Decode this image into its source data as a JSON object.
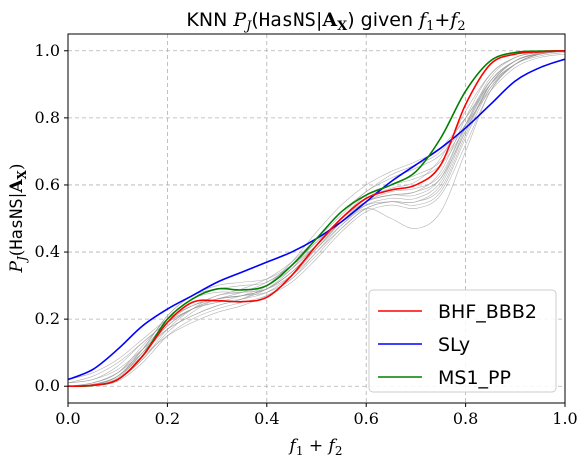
{
  "chart_data": {
    "type": "line",
    "title": "KNN P_J(HasNS|A_X) given f_1+f_2",
    "xlabel": "f_1 + f_2",
    "ylabel": "P_J(HasNS|A_X)",
    "xlim": [
      0.0,
      1.0
    ],
    "ylim": [
      -0.05,
      1.05
    ],
    "x_ticks": [
      "0.0",
      "0.2",
      "0.4",
      "0.6",
      "0.8",
      "1.0"
    ],
    "y_ticks": [
      "0.0",
      "0.2",
      "0.4",
      "0.6",
      "0.8",
      "1.0"
    ],
    "grid": true,
    "legend_position": "bottom-right",
    "x": [
      0.0,
      0.05,
      0.1,
      0.15,
      0.2,
      0.25,
      0.3,
      0.35,
      0.4,
      0.45,
      0.5,
      0.55,
      0.6,
      0.65,
      0.7,
      0.75,
      0.8,
      0.85,
      0.9,
      0.95,
      1.0
    ],
    "series": [
      {
        "name": "BHF_BBB2",
        "color": "#ff0000",
        "values": [
          0.0,
          0.003,
          0.02,
          0.09,
          0.19,
          0.25,
          0.255,
          0.252,
          0.265,
          0.33,
          0.42,
          0.5,
          0.56,
          0.585,
          0.6,
          0.66,
          0.84,
          0.96,
          0.99,
          0.997,
          1.0
        ]
      },
      {
        "name": "SLy",
        "color": "#0000ff",
        "values": [
          0.02,
          0.05,
          0.11,
          0.18,
          0.23,
          0.27,
          0.31,
          0.34,
          0.37,
          0.4,
          0.44,
          0.49,
          0.55,
          0.61,
          0.66,
          0.71,
          0.77,
          0.84,
          0.91,
          0.95,
          0.975
        ]
      },
      {
        "name": "MS1_PP",
        "color": "#008000",
        "values": [
          0.0,
          0.002,
          0.02,
          0.09,
          0.2,
          0.26,
          0.29,
          0.287,
          0.3,
          0.36,
          0.44,
          0.52,
          0.57,
          0.6,
          0.64,
          0.74,
          0.88,
          0.97,
          0.995,
          0.999,
          1.0
        ]
      }
    ],
    "background_series": [
      [
        0.0,
        0.01,
        0.04,
        0.12,
        0.2,
        0.24,
        0.26,
        0.27,
        0.29,
        0.34,
        0.42,
        0.5,
        0.56,
        0.59,
        0.61,
        0.68,
        0.82,
        0.93,
        0.98,
        0.995,
        1.0
      ],
      [
        0.0,
        0.005,
        0.03,
        0.1,
        0.18,
        0.23,
        0.25,
        0.26,
        0.28,
        0.33,
        0.41,
        0.49,
        0.55,
        0.57,
        0.57,
        0.62,
        0.78,
        0.92,
        0.98,
        0.995,
        1.0
      ],
      [
        0.01,
        0.02,
        0.05,
        0.11,
        0.17,
        0.21,
        0.24,
        0.26,
        0.29,
        0.35,
        0.44,
        0.52,
        0.58,
        0.63,
        0.66,
        0.7,
        0.8,
        0.91,
        0.97,
        0.99,
        1.0
      ],
      [
        0.0,
        0.003,
        0.02,
        0.08,
        0.16,
        0.22,
        0.26,
        0.27,
        0.28,
        0.32,
        0.4,
        0.47,
        0.53,
        0.55,
        0.55,
        0.6,
        0.76,
        0.9,
        0.97,
        0.99,
        1.0
      ],
      [
        0.0,
        0.004,
        0.03,
        0.11,
        0.21,
        0.27,
        0.29,
        0.3,
        0.31,
        0.36,
        0.43,
        0.5,
        0.55,
        0.57,
        0.58,
        0.64,
        0.8,
        0.93,
        0.98,
        0.995,
        1.0
      ],
      [
        0.02,
        0.04,
        0.08,
        0.14,
        0.2,
        0.24,
        0.27,
        0.29,
        0.32,
        0.37,
        0.44,
        0.51,
        0.58,
        0.62,
        0.65,
        0.69,
        0.78,
        0.88,
        0.95,
        0.98,
        0.99
      ],
      [
        0.0,
        0.002,
        0.015,
        0.07,
        0.15,
        0.2,
        0.23,
        0.25,
        0.27,
        0.31,
        0.38,
        0.46,
        0.52,
        0.54,
        0.53,
        0.57,
        0.72,
        0.88,
        0.96,
        0.99,
        1.0
      ],
      [
        0.01,
        0.03,
        0.07,
        0.13,
        0.19,
        0.23,
        0.25,
        0.27,
        0.3,
        0.35,
        0.42,
        0.5,
        0.57,
        0.6,
        0.62,
        0.66,
        0.77,
        0.89,
        0.96,
        0.99,
        1.0
      ],
      [
        0.0,
        0.003,
        0.025,
        0.1,
        0.2,
        0.26,
        0.28,
        0.28,
        0.29,
        0.33,
        0.4,
        0.48,
        0.54,
        0.56,
        0.56,
        0.61,
        0.77,
        0.91,
        0.97,
        0.993,
        1.0
      ],
      [
        0.0,
        0.01,
        0.04,
        0.1,
        0.17,
        0.21,
        0.24,
        0.26,
        0.3,
        0.37,
        0.46,
        0.54,
        0.6,
        0.64,
        0.67,
        0.71,
        0.8,
        0.9,
        0.96,
        0.985,
        0.995
      ],
      [
        0.0,
        0.006,
        0.03,
        0.09,
        0.15,
        0.19,
        0.22,
        0.24,
        0.27,
        0.32,
        0.39,
        0.47,
        0.53,
        0.55,
        0.54,
        0.58,
        0.74,
        0.89,
        0.96,
        0.99,
        1.0
      ],
      [
        0.0,
        0.004,
        0.03,
        0.11,
        0.21,
        0.27,
        0.3,
        0.31,
        0.32,
        0.36,
        0.42,
        0.49,
        0.54,
        0.55,
        0.55,
        0.59,
        0.75,
        0.9,
        0.97,
        0.993,
        1.0
      ],
      [
        0.01,
        0.02,
        0.06,
        0.13,
        0.19,
        0.23,
        0.26,
        0.28,
        0.31,
        0.36,
        0.43,
        0.5,
        0.56,
        0.6,
        0.63,
        0.67,
        0.78,
        0.9,
        0.96,
        0.99,
        0.998
      ],
      [
        0.0,
        0.005,
        0.03,
        0.1,
        0.18,
        0.23,
        0.26,
        0.27,
        0.29,
        0.34,
        0.41,
        0.48,
        0.53,
        0.5,
        0.47,
        0.52,
        0.7,
        0.88,
        0.96,
        0.99,
        1.0
      ],
      [
        0.0,
        0.003,
        0.02,
        0.08,
        0.17,
        0.23,
        0.27,
        0.28,
        0.3,
        0.35,
        0.42,
        0.49,
        0.55,
        0.58,
        0.59,
        0.63,
        0.78,
        0.91,
        0.97,
        0.99,
        1.0
      ],
      [
        0.0,
        0.01,
        0.04,
        0.11,
        0.19,
        0.24,
        0.26,
        0.27,
        0.29,
        0.34,
        0.41,
        0.49,
        0.55,
        0.57,
        0.58,
        0.62,
        0.76,
        0.9,
        0.97,
        0.992,
        1.0
      ]
    ]
  }
}
